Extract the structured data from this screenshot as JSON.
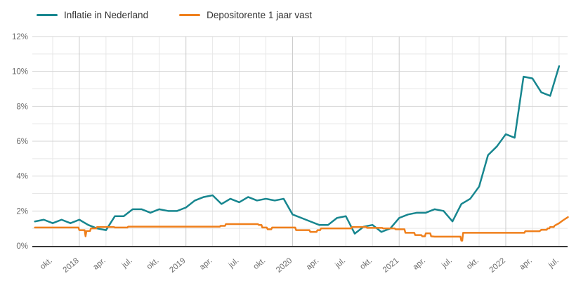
{
  "chart_data": {
    "type": "line",
    "title": "",
    "x_unit": "month",
    "x_start_label": "aug. 2017",
    "y_axis": {
      "min": 0,
      "max": 12,
      "major_values": [
        0,
        2,
        4,
        6,
        8,
        10,
        12
      ],
      "major_tick_labels": [
        "0%",
        "2%",
        "4%",
        "6%",
        "8%",
        "10%",
        "12%"
      ],
      "minor_values": [
        1,
        3,
        5,
        7,
        9,
        11
      ],
      "grid": "on"
    },
    "x_axis": {
      "tick_labels": [
        {
          "label": "okt.",
          "month": 2
        },
        {
          "label": "2018",
          "month": 5
        },
        {
          "label": "apr.",
          "month": 8
        },
        {
          "label": "jul.",
          "month": 11
        },
        {
          "label": "okt.",
          "month": 14
        },
        {
          "label": "2019",
          "month": 17
        },
        {
          "label": "apr.",
          "month": 20
        },
        {
          "label": "jul.",
          "month": 23
        },
        {
          "label": "okt.",
          "month": 26
        },
        {
          "label": "2020",
          "month": 29
        },
        {
          "label": "apr.",
          "month": 32
        },
        {
          "label": "jul.",
          "month": 35
        },
        {
          "label": "okt.",
          "month": 38
        },
        {
          "label": "2021",
          "month": 41
        },
        {
          "label": "apr.",
          "month": 44
        },
        {
          "label": "jul.",
          "month": 47
        },
        {
          "label": "okt.",
          "month": 50
        },
        {
          "label": "2022",
          "month": 53
        },
        {
          "label": "apr.",
          "month": 56
        },
        {
          "label": "jul.",
          "month": 59
        }
      ],
      "year_start_months": [
        5,
        17,
        29,
        41,
        53
      ]
    },
    "legend_position": "top-left",
    "series": [
      {
        "name": "Inflatie in Nederland",
        "color": "#17868f",
        "monthly_values_pct": [
          1.4,
          1.5,
          1.3,
          1.5,
          1.3,
          1.5,
          1.2,
          1.0,
          0.9,
          1.7,
          1.7,
          2.1,
          2.1,
          1.9,
          2.1,
          2.0,
          2.0,
          2.2,
          2.6,
          2.8,
          2.9,
          2.4,
          2.7,
          2.5,
          2.8,
          2.6,
          2.7,
          2.6,
          2.7,
          1.8,
          1.6,
          1.4,
          1.2,
          1.2,
          1.6,
          1.7,
          0.7,
          1.1,
          1.2,
          0.8,
          1.0,
          1.6,
          1.8,
          1.9,
          1.9,
          2.1,
          2.0,
          1.4,
          2.4,
          2.7,
          3.4,
          5.2,
          5.7,
          6.4,
          6.2,
          9.7,
          9.6,
          8.8,
          8.6,
          10.3
        ]
      },
      {
        "name": "Depositorente 1 jaar vast",
        "color": "#ef7f1b",
        "points_month_pct": [
          [
            0,
            1.05
          ],
          [
            4.9,
            1.05
          ],
          [
            5.0,
            0.9
          ],
          [
            5.6,
            0.9
          ],
          [
            5.7,
            0.55
          ],
          [
            5.8,
            0.85
          ],
          [
            6.2,
            0.85
          ],
          [
            6.3,
            1.0
          ],
          [
            6.9,
            1.0
          ],
          [
            7.0,
            1.08
          ],
          [
            8.9,
            1.08
          ],
          [
            9.0,
            1.05
          ],
          [
            10.4,
            1.05
          ],
          [
            10.5,
            1.1
          ],
          [
            20.8,
            1.1
          ],
          [
            20.9,
            1.15
          ],
          [
            21.4,
            1.15
          ],
          [
            21.5,
            1.25
          ],
          [
            25.1,
            1.25
          ],
          [
            25.2,
            1.2
          ],
          [
            25.5,
            1.2
          ],
          [
            25.6,
            1.05
          ],
          [
            26.1,
            1.05
          ],
          [
            26.2,
            0.95
          ],
          [
            26.6,
            0.95
          ],
          [
            26.7,
            1.05
          ],
          [
            29.3,
            1.05
          ],
          [
            29.4,
            0.9
          ],
          [
            30.9,
            0.9
          ],
          [
            31.0,
            0.8
          ],
          [
            31.7,
            0.8
          ],
          [
            31.8,
            0.9
          ],
          [
            32.1,
            0.9
          ],
          [
            32.2,
            1.0
          ],
          [
            35.6,
            1.0
          ],
          [
            35.7,
            1.08
          ],
          [
            37.3,
            1.08
          ],
          [
            37.4,
            1.03
          ],
          [
            39.1,
            1.03
          ],
          [
            39.2,
            1.0
          ],
          [
            40.5,
            1.0
          ],
          [
            40.6,
            0.95
          ],
          [
            41.6,
            0.95
          ],
          [
            41.7,
            0.75
          ],
          [
            42.7,
            0.75
          ],
          [
            42.8,
            0.62
          ],
          [
            43.5,
            0.62
          ],
          [
            43.6,
            0.55
          ],
          [
            43.9,
            0.55
          ],
          [
            44.0,
            0.72
          ],
          [
            44.5,
            0.72
          ],
          [
            44.6,
            0.55
          ],
          [
            45.0,
            0.53
          ],
          [
            47.9,
            0.53
          ],
          [
            48.0,
            0.3
          ],
          [
            48.1,
            0.3
          ],
          [
            48.2,
            0.75
          ],
          [
            55.1,
            0.75
          ],
          [
            55.2,
            0.84
          ],
          [
            56.8,
            0.84
          ],
          [
            57.0,
            0.92
          ],
          [
            57.6,
            0.92
          ],
          [
            57.7,
            1.0
          ],
          [
            57.9,
            1.0
          ],
          [
            58.0,
            1.08
          ],
          [
            58.4,
            1.08
          ],
          [
            58.5,
            1.16
          ],
          [
            59.0,
            1.3
          ],
          [
            59.4,
            1.45
          ],
          [
            59.7,
            1.55
          ],
          [
            60.0,
            1.65
          ]
        ]
      }
    ],
    "colors": {
      "grid_minor": "#e7e7e7",
      "grid_major": "#d6d6d6",
      "grid_year": "#cbcbcb",
      "axis_line": "#383838",
      "tick_text": "#6b6b6b"
    }
  }
}
